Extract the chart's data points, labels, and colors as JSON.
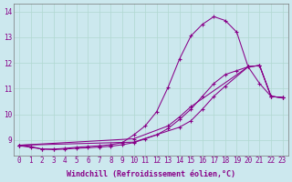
{
  "background_color": "#cce8ee",
  "grid_color": "#b0d8d0",
  "line_color": "#880088",
  "marker": "+",
  "xlabel": "Windchill (Refroidissement éolien,°C)",
  "ylabel_ticks": [
    9,
    10,
    11,
    12,
    13,
    14
  ],
  "xlim": [
    -0.5,
    23.5
  ],
  "ylim": [
    8.4,
    14.3
  ],
  "series1_x": [
    0,
    1,
    2,
    3,
    4,
    5,
    6,
    7,
    8,
    9,
    10,
    11,
    12,
    13,
    14,
    15,
    16,
    17,
    18,
    19,
    20,
    21,
    22,
    23
  ],
  "series1_y": [
    8.8,
    8.75,
    8.65,
    8.65,
    8.68,
    8.72,
    8.75,
    8.78,
    8.82,
    8.9,
    9.2,
    9.55,
    10.1,
    11.05,
    12.15,
    13.05,
    13.5,
    13.8,
    13.65,
    13.2,
    11.85,
    11.2,
    10.7,
    10.65
  ],
  "series2_x": [
    0,
    1,
    2,
    3,
    4,
    5,
    6,
    7,
    8,
    9,
    10,
    11,
    12,
    13,
    14,
    15,
    16,
    17,
    18,
    19,
    20,
    21,
    22,
    23
  ],
  "series2_y": [
    8.78,
    8.72,
    8.65,
    8.63,
    8.65,
    8.68,
    8.7,
    8.73,
    8.76,
    8.82,
    8.9,
    9.05,
    9.2,
    9.45,
    9.8,
    10.2,
    10.7,
    11.2,
    11.55,
    11.7,
    11.85,
    11.9,
    10.7,
    10.65
  ],
  "series3_x": [
    0,
    10,
    13,
    14,
    15,
    20,
    21,
    22,
    23
  ],
  "series3_y": [
    8.8,
    9.05,
    9.55,
    9.9,
    10.3,
    11.85,
    11.9,
    10.7,
    10.65
  ],
  "series4_x": [
    0,
    10,
    14,
    15,
    16,
    17,
    18,
    20,
    21,
    22,
    23
  ],
  "series4_y": [
    8.8,
    8.92,
    9.5,
    9.75,
    10.2,
    10.7,
    11.1,
    11.85,
    11.9,
    10.7,
    10.65
  ],
  "xtick_labels": [
    "0",
    "1",
    "2",
    "3",
    "4",
    "5",
    "6",
    "7",
    "8",
    "9",
    "10",
    "11",
    "12",
    "13",
    "14",
    "15",
    "16",
    "17",
    "18",
    "19",
    "20",
    "21",
    "22",
    "23"
  ],
  "xlabel_fontsize": 6,
  "tick_fontsize": 5.5
}
